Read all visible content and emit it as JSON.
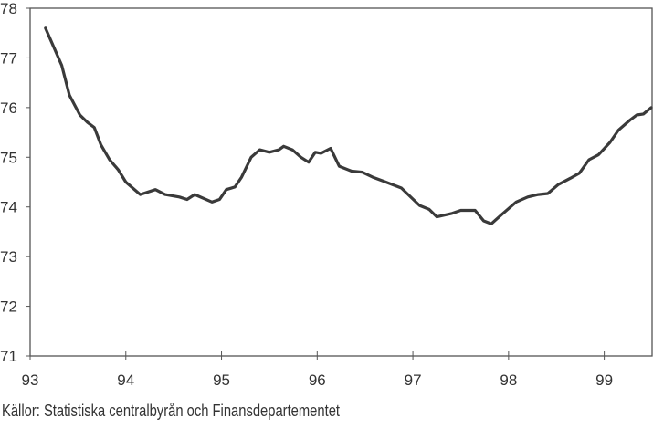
{
  "chart_data": {
    "type": "line",
    "title": "",
    "xlabel": "",
    "ylabel": "",
    "xlim": [
      93,
      99.5
    ],
    "ylim": [
      71,
      78
    ],
    "x_ticks": [
      93,
      94,
      95,
      96,
      97,
      98,
      99
    ],
    "y_ticks": [
      71,
      72,
      73,
      74,
      75,
      76,
      77,
      78
    ],
    "grid": false,
    "series": [
      {
        "name": "series",
        "color": "#3a3a3a",
        "x": [
          93.16,
          93.33,
          93.41,
          93.52,
          93.6,
          93.67,
          93.74,
          93.83,
          93.92,
          94.0,
          94.15,
          94.31,
          94.41,
          94.56,
          94.64,
          94.72,
          94.9,
          94.98,
          95.05,
          95.14,
          95.21,
          95.31,
          95.4,
          95.5,
          95.6,
          95.65,
          95.74,
          95.83,
          95.91,
          95.98,
          96.04,
          96.14,
          96.23,
          96.36,
          96.47,
          96.58,
          96.69,
          96.88,
          97.07,
          97.17,
          97.25,
          97.41,
          97.5,
          97.65,
          97.74,
          97.82,
          97.93,
          98.08,
          98.2,
          98.31,
          98.41,
          98.52,
          98.65,
          98.74,
          98.84,
          98.94,
          99.06,
          99.15,
          99.27,
          99.34,
          99.41,
          99.49
        ],
        "y": [
          77.6,
          76.85,
          76.25,
          75.85,
          75.7,
          75.6,
          75.25,
          74.95,
          74.75,
          74.5,
          74.25,
          74.35,
          74.25,
          74.2,
          74.15,
          74.25,
          74.1,
          74.15,
          74.35,
          74.4,
          74.6,
          75.0,
          75.15,
          75.1,
          75.15,
          75.22,
          75.15,
          75.0,
          74.9,
          75.1,
          75.08,
          75.18,
          74.82,
          74.72,
          74.7,
          74.6,
          74.52,
          74.38,
          74.03,
          73.95,
          73.8,
          73.87,
          73.93,
          73.93,
          73.72,
          73.66,
          73.85,
          74.1,
          74.2,
          74.25,
          74.27,
          74.45,
          74.58,
          74.68,
          74.95,
          75.05,
          75.3,
          75.55,
          75.75,
          75.85,
          75.87,
          76.0
        ]
      }
    ]
  },
  "source_note": "Källor: Statistiska centralbyrån och Finansdepartementet"
}
